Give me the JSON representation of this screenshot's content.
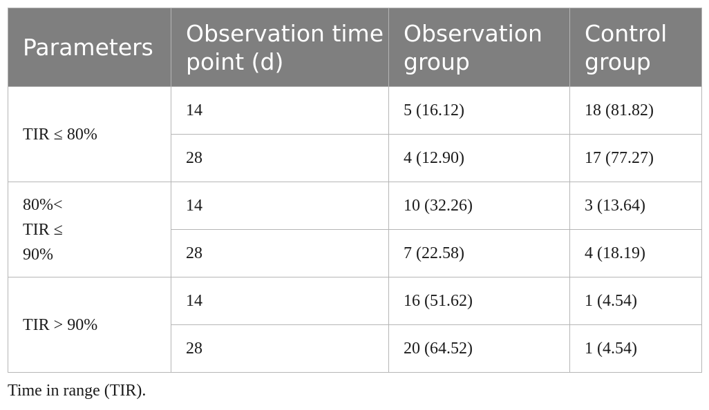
{
  "table": {
    "headers": [
      "Parameters",
      "Observation time point (d)",
      "Observation group",
      "Control group"
    ],
    "groups": [
      {
        "parameter": "TIR ≤ 80%",
        "rows": [
          {
            "time_point": "14",
            "observation": "5 (16.12)",
            "control": "18 (81.82)"
          },
          {
            "time_point": "28",
            "observation": "4 (12.90)",
            "control": "17 (77.27)"
          }
        ]
      },
      {
        "parameter": "80%< TIR ≤ 90%",
        "rows": [
          {
            "time_point": "14",
            "observation": "10 (32.26)",
            "control": "3 (13.64)"
          },
          {
            "time_point": "28",
            "observation": "7 (22.58)",
            "control": "4 (18.19)"
          }
        ]
      },
      {
        "parameter": "TIR > 90%",
        "rows": [
          {
            "time_point": "14",
            "observation": "16 (51.62)",
            "control": "1 (4.54)"
          },
          {
            "time_point": "28",
            "observation": "20 (64.52)",
            "control": "1 (4.54)"
          }
        ]
      }
    ]
  },
  "footnote": "Time in range (TIR).",
  "colors": {
    "header_background": "#7f7f7f",
    "header_text": "#ffffff",
    "border": "#b5b5b5",
    "body_text": "#1a1a1a"
  }
}
